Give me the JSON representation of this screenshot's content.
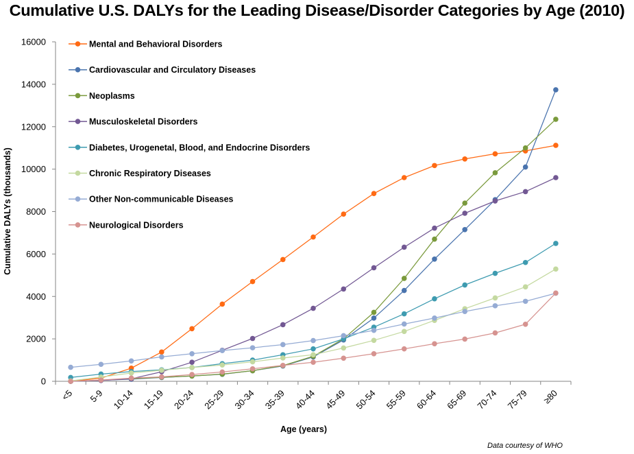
{
  "chart_data": {
    "type": "line",
    "title": "Cumulative U.S. DALYs for the Leading Disease/Disorder Categories by Age (2010)",
    "xlabel": "Age (years)",
    "ylabel": "Cumulative DALYs (thousands)",
    "ylim": [
      0,
      16000
    ],
    "yticks": [
      0,
      2000,
      4000,
      6000,
      8000,
      10000,
      12000,
      14000,
      16000
    ],
    "grid": false,
    "legend_position": "top-left",
    "credit": "Data courtesy  of WHO",
    "categories": [
      "<5",
      "5-9",
      "10-14",
      "15-19",
      "20-24",
      "25-29",
      "30-34",
      "35-39",
      "40-44",
      "45-49",
      "50-54",
      "55-59",
      "60-64",
      "65-69",
      "70-74",
      "75-79",
      "≥80"
    ],
    "series": [
      {
        "name": "Mental and Behavioral Disorders",
        "color": "#FF6A13",
        "values": [
          0,
          150,
          620,
          1380,
          2480,
          3640,
          4700,
          5740,
          6800,
          7880,
          8850,
          9600,
          10170,
          10480,
          10720,
          10860,
          11120
        ]
      },
      {
        "name": "Cardiovascular and Circulatory Diseases",
        "color": "#4A74AE",
        "values": [
          0,
          50,
          100,
          180,
          250,
          330,
          500,
          720,
          1150,
          1950,
          2980,
          4280,
          5760,
          7150,
          8560,
          10100,
          13740
        ]
      },
      {
        "name": "Neoplasms",
        "color": "#7A9A3C",
        "values": [
          0,
          50,
          120,
          190,
          250,
          340,
          500,
          740,
          1180,
          2000,
          3250,
          4850,
          6700,
          8400,
          9830,
          11000,
          12350
        ]
      },
      {
        "name": "Musculoskeletal Disorders",
        "color": "#725893",
        "values": [
          0,
          40,
          120,
          450,
          900,
          1460,
          2020,
          2670,
          3440,
          4350,
          5350,
          6320,
          7220,
          7920,
          8500,
          8940,
          9600
        ]
      },
      {
        "name": "Diabetes, Urogenetal, Blood, and Endocrine Disorders",
        "color": "#3E9BB0",
        "values": [
          180,
          340,
          460,
          540,
          650,
          830,
          1000,
          1250,
          1530,
          2000,
          2550,
          3180,
          3890,
          4540,
          5090,
          5600,
          6500
        ]
      },
      {
        "name": "Chronic Respiratory Diseases",
        "color": "#C4D9A0",
        "values": [
          20,
          200,
          390,
          520,
          650,
          770,
          920,
          1100,
          1250,
          1570,
          1930,
          2350,
          2870,
          3420,
          3930,
          4450,
          5290
        ]
      },
      {
        "name": "Other Non-communicable Diseases",
        "color": "#95ABD4",
        "values": [
          660,
          800,
          960,
          1150,
          1300,
          1450,
          1580,
          1730,
          1920,
          2150,
          2400,
          2700,
          2980,
          3290,
          3560,
          3770,
          4150
        ]
      },
      {
        "name": "Neurological Disorders",
        "color": "#D69390",
        "values": [
          0,
          60,
          150,
          210,
          320,
          440,
          590,
          750,
          900,
          1090,
          1300,
          1530,
          1770,
          1990,
          2280,
          2690,
          4160
        ]
      }
    ]
  }
}
